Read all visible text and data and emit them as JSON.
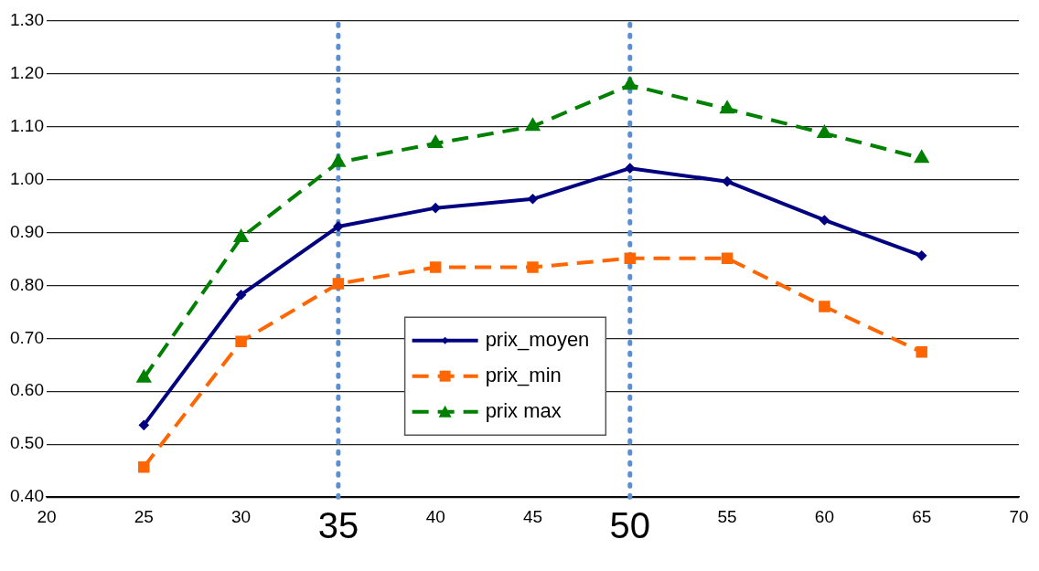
{
  "chart_data": {
    "type": "line",
    "x": [
      25,
      30,
      35,
      40,
      45,
      50,
      55,
      60,
      65
    ],
    "series": [
      {
        "name": "prix_moyen",
        "color": "#000080",
        "marker": "diamond",
        "line_style": "solid",
        "values": [
          0.536,
          0.782,
          0.911,
          0.946,
          0.963,
          1.021,
          0.996,
          0.923,
          0.856
        ]
      },
      {
        "name": "prix_min",
        "color": "#ff6600",
        "marker": "square",
        "line_style": "dashed",
        "values": [
          0.457,
          0.694,
          0.803,
          0.834,
          0.834,
          0.851,
          0.851,
          0.76,
          0.674
        ]
      },
      {
        "name": "prix max",
        "color": "#008000",
        "marker": "triangle",
        "line_style": "dashed",
        "values": [
          0.625,
          0.89,
          1.032,
          1.068,
          1.1,
          1.178,
          1.133,
          1.087,
          1.04
        ]
      }
    ],
    "xlim": [
      20,
      70
    ],
    "xticks": [
      20,
      25,
      30,
      {
        "value": 35,
        "label": null
      },
      40,
      45,
      {
        "value": 50,
        "label": null
      },
      55,
      60,
      65,
      70
    ],
    "ylim": [
      0.4,
      1.3
    ],
    "yticks": [
      {
        "value": 0.4,
        "label": "0.40"
      },
      {
        "value": 0.5,
        "label": "0.50"
      },
      {
        "value": 0.6,
        "label": "0.60"
      },
      {
        "value": 0.7,
        "label": "0.70"
      },
      {
        "value": 0.8,
        "label": "0.80"
      },
      {
        "value": 0.9,
        "label": "0.90"
      },
      {
        "value": 1.0,
        "label": "1.00"
      },
      {
        "value": 1.1,
        "label": "1.10"
      },
      {
        "value": 1.2,
        "label": "1.20"
      },
      {
        "value": 1.3,
        "label": "1.30"
      }
    ],
    "ref_lines": [
      {
        "axis": "x",
        "value": 35,
        "label": "35",
        "color": "#5b8fd0",
        "line_style": "dotted"
      },
      {
        "axis": "x",
        "value": 50,
        "label": "50",
        "color": "#5b8fd0",
        "line_style": "dotted"
      }
    ],
    "grid": "y",
    "legend": "bottom"
  }
}
